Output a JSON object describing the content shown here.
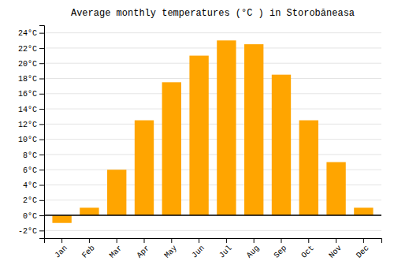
{
  "chart_data": {
    "type": "bar",
    "title": "Average monthly temperatures (°C ) in Storobăneasa",
    "categories": [
      "Jan",
      "Feb",
      "Mar",
      "Apr",
      "May",
      "Jun",
      "Jul",
      "Aug",
      "Sep",
      "Oct",
      "Nov",
      "Dec"
    ],
    "values": [
      -1.0,
      1.0,
      6.0,
      12.5,
      17.5,
      21.0,
      23.0,
      22.5,
      18.5,
      12.5,
      7.0,
      1.0
    ],
    "color": "#FFA500",
    "ylim": [
      -3,
      25
    ],
    "yticks": [
      {
        "value": -2,
        "label": "-2°C"
      },
      {
        "value": 0,
        "label": "0°C"
      },
      {
        "value": 2,
        "label": "2°C"
      },
      {
        "value": 4,
        "label": "4°C"
      },
      {
        "value": 6,
        "label": "6°C"
      },
      {
        "value": 8,
        "label": "8°C"
      },
      {
        "value": 10,
        "label": "10°C"
      },
      {
        "value": 12,
        "label": "12°C"
      },
      {
        "value": 14,
        "label": "14°C"
      },
      {
        "value": 16,
        "label": "16°C"
      },
      {
        "value": 18,
        "label": "18°C"
      },
      {
        "value": 20,
        "label": "20°C"
      },
      {
        "value": 22,
        "label": "22°C"
      },
      {
        "value": 24,
        "label": "24°C"
      }
    ],
    "grid": true
  }
}
